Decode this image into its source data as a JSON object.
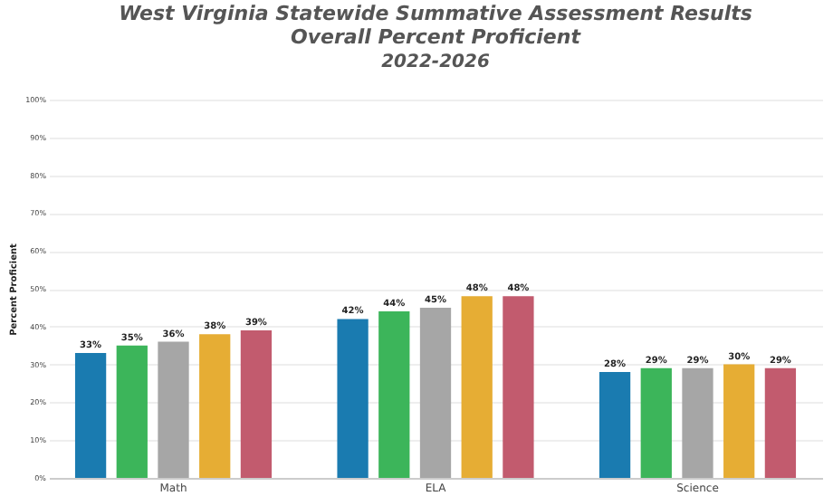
{
  "chart_data": {
    "type": "bar",
    "title": "West Virginia Statewide Summative Assessment Results\nOverall Percent Proficient",
    "subtitle": "2022-2026",
    "ylabel": "Percent Proficient",
    "categories": [
      "Math",
      "ELA",
      "Science"
    ],
    "series": [
      {
        "color": "#1a7bb0",
        "values": [
          33,
          42,
          28
        ],
        "value_labels": [
          "33%",
          "42%",
          "28%"
        ]
      },
      {
        "color": "#3cb55a",
        "values": [
          35,
          44,
          29
        ],
        "value_labels": [
          "35%",
          "44%",
          "29%"
        ]
      },
      {
        "color": "#a6a6a6",
        "values": [
          36,
          45,
          29
        ],
        "value_labels": [
          "36%",
          "45%",
          "29%"
        ]
      },
      {
        "color": "#e6ad34",
        "values": [
          38,
          48,
          30
        ],
        "value_labels": [
          "38%",
          "48%",
          "30%"
        ]
      },
      {
        "color": "#c25b6e",
        "values": [
          39,
          48,
          29
        ],
        "value_labels": [
          "39%",
          "48%",
          "29%"
        ]
      }
    ],
    "ylim": [
      0,
      100
    ],
    "yticks": [
      {
        "value": 0,
        "label": "0%"
      },
      {
        "value": 10,
        "label": "10%"
      },
      {
        "value": 20,
        "label": "20%"
      },
      {
        "value": 30,
        "label": "30%"
      },
      {
        "value": 40,
        "label": "40%"
      },
      {
        "value": 50,
        "label": "50%"
      },
      {
        "value": 60,
        "label": "60%"
      },
      {
        "value": 70,
        "label": "70%"
      },
      {
        "value": 80,
        "label": "80%"
      },
      {
        "value": 90,
        "label": "90%"
      },
      {
        "value": 100,
        "label": "100%"
      }
    ],
    "grid": "y"
  }
}
